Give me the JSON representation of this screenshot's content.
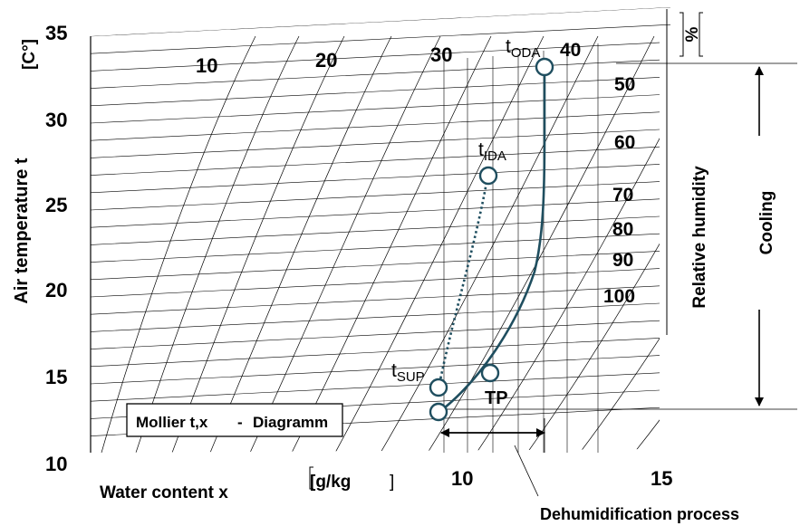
{
  "colors": {
    "process_curve": "#1f4e5f",
    "grid": "#000000",
    "text": "#000000"
  },
  "axes": {
    "y_unit": "[C°]",
    "y_label": "Air temperature t",
    "y_ticks": [
      "35",
      "30",
      "25",
      "20",
      "15",
      "10"
    ],
    "x_label": "Water content x",
    "x_unit": "[g/kg",
    "x_unit_close": "]",
    "x_ticks": [
      "10",
      "15"
    ]
  },
  "top_numbers": [
    "10",
    "20",
    "30"
  ],
  "rh": {
    "unit": "%",
    "label": "Relative humidity",
    "values": [
      "40",
      "50",
      "60",
      "70",
      "80",
      "90",
      "100"
    ]
  },
  "points": {
    "oda": {
      "main": "t",
      "sub": "ODA"
    },
    "ida": {
      "main": "t",
      "sub": "IDA"
    },
    "sup": {
      "main": "t",
      "sub": "SUP"
    },
    "tp": "TP"
  },
  "legend_box": {
    "left": "Mollier t,x",
    "dash": "-",
    "right": "Diagramm"
  },
  "cooling_label": "Cooling",
  "dehum_label": "Dehumidification process"
}
